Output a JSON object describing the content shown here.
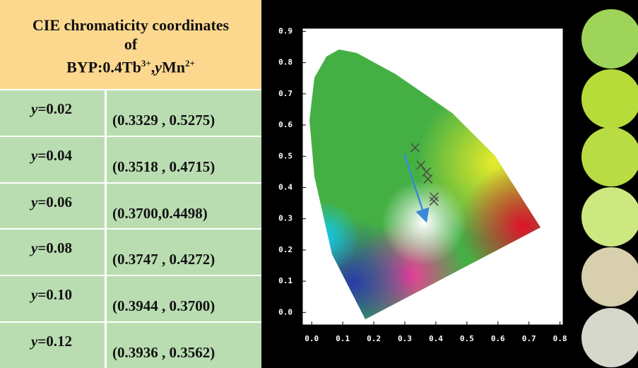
{
  "table": {
    "title_lines": [
      "CIE chromaticity coordinates",
      "of"
    ],
    "formula": {
      "base": "BYP:0.4Tb",
      "sup1": "3+",
      "sep": ",",
      "var": "y",
      "ion": "Mn",
      "sup2": "2+"
    },
    "rows": [
      {
        "var": "y",
        "value": "=0.02",
        "coords": "(0.3329 , 0.5275)"
      },
      {
        "var": "y",
        "value": "=0.04",
        "coords": "(0.3518 , 0.4715)"
      },
      {
        "var": "y",
        "value": "=0.06",
        "coords": "(0.3700,0.4498)"
      },
      {
        "var": "y",
        "value": "=0.08",
        "coords": "(0.3747 , 0.4272)"
      },
      {
        "var": "y",
        "value": "=0.10",
        "coords": "(0.3944 , 0.3700)"
      },
      {
        "var": "y",
        "value": "=0.12",
        "coords": "(0.3936 , 0.3562)"
      }
    ]
  },
  "chart_data": {
    "type": "scatter",
    "x": [
      0.3329,
      0.3518,
      0.37,
      0.3747,
      0.3944,
      0.3936
    ],
    "values": [
      0.5275,
      0.4715,
      0.4498,
      0.4272,
      0.37,
      0.3562
    ],
    "color": "#4a4a4a",
    "xlim": [
      -0.03,
      0.81
    ],
    "ylim": [
      -0.04,
      0.91
    ],
    "xticks": [
      {
        "value": 0,
        "label": "0.0"
      },
      0.1,
      0.2,
      0.3,
      0.4,
      0.5,
      0.6,
      0.7,
      0.8
    ],
    "yticks": [
      {
        "value": 0,
        "label": "0.0"
      },
      0.1,
      0.2,
      0.3,
      0.4,
      0.5,
      0.6,
      0.7,
      0.8,
      0.9
    ]
  }
}
